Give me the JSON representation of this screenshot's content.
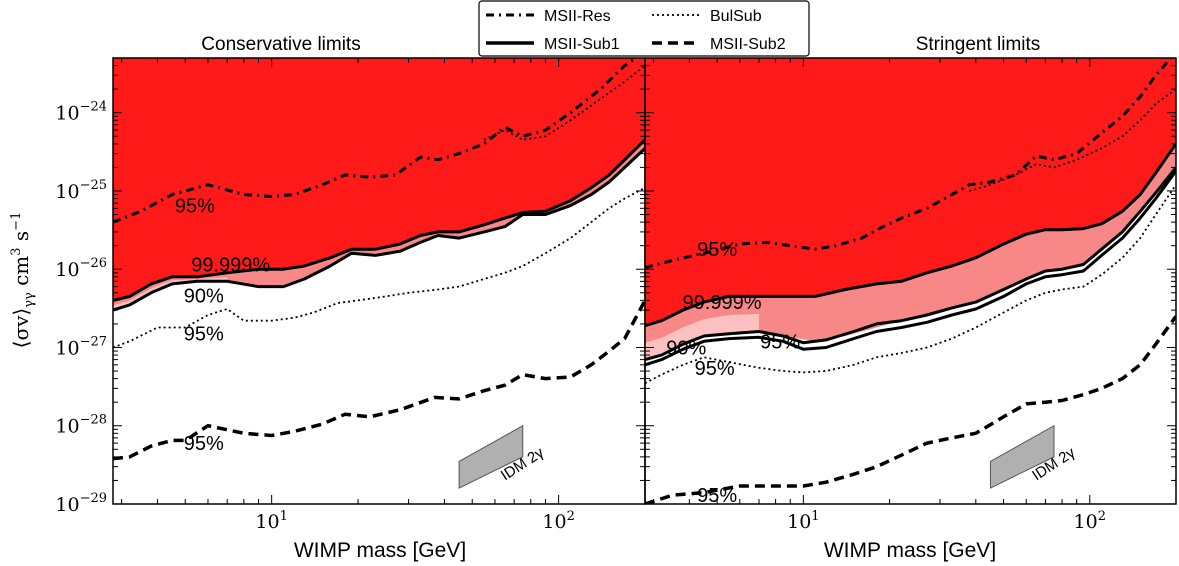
{
  "figure": {
    "ylabel_main": "⟨σv⟩γγ cm³ s⁻¹",
    "xlabel": "WIMP mass [GeV]"
  },
  "legend": {
    "placement": "top-center",
    "entries": [
      {
        "name": "MSII-Res",
        "style": "dash-dot"
      },
      {
        "name": "BulSub",
        "style": "dotted"
      },
      {
        "name": "MSII-Sub1",
        "style": "solid"
      },
      {
        "name": "MSII-Sub2",
        "style": "dashed"
      }
    ]
  },
  "colors": {
    "excluded_95": "#ff1a1a",
    "band_outer": "#f88888",
    "band_inner": "#fbcaca",
    "idm": "#b0b0b0"
  },
  "chart_data": [
    {
      "type": "line",
      "title": "Conservative limits",
      "xlabel": "WIMP mass [GeV]",
      "ylabel": "⟨σv⟩γγ cm³ s⁻¹",
      "xscale": "log",
      "yscale": "log",
      "xlim": [
        2.8,
        200
      ],
      "ylim": [
        1e-29,
        5e-24
      ],
      "x_ticks": [
        {
          "value": 10,
          "label": "10^1"
        },
        {
          "value": 100,
          "label": "10^2"
        }
      ],
      "y_ticks": [
        {
          "value": 1e-29,
          "label": "10^-29"
        },
        {
          "value": 1e-28,
          "label": "10^-28"
        },
        {
          "value": 1e-27,
          "label": "10^-27"
        },
        {
          "value": 1e-26,
          "label": "10^-26"
        },
        {
          "value": 1e-25,
          "label": "10^-25"
        },
        {
          "value": 1e-24,
          "label": "10^-24"
        }
      ],
      "series": [
        {
          "name": "MSII-Res",
          "style": "dash-dot",
          "x": [
            2.8,
            3.5,
            4.5,
            6,
            8,
            10,
            12,
            15,
            18,
            22,
            27,
            33,
            38,
            45,
            55,
            65,
            75,
            90,
            110,
            140,
            170,
            200
          ],
          "y": [
            4e-26,
            5.5e-26,
            9e-26,
            1.2e-25,
            9e-26,
            8.5e-26,
            9e-26,
            1.2e-25,
            1.6e-25,
            1.5e-25,
            1.6e-25,
            2.7e-25,
            2.5e-25,
            3e-25,
            4e-25,
            6.5e-25,
            5e-25,
            6e-25,
            1e-24,
            2e-24,
            4e-24,
            6e-24
          ]
        },
        {
          "name": "MSII-Res",
          "style": "dotted",
          "x": [
            55,
            65,
            75,
            90,
            110,
            140,
            170,
            200
          ],
          "y": [
            4.5e-25,
            6e-25,
            4.5e-25,
            5e-25,
            8e-25,
            1.5e-24,
            2.5e-24,
            4e-24
          ]
        },
        {
          "name": "MSII-Sub1",
          "style": "solid",
          "x": [
            2.8,
            3.2,
            3.8,
            4.5,
            5.5,
            7,
            9,
            11,
            13,
            16,
            19,
            23,
            28,
            33,
            38,
            45,
            55,
            65,
            75,
            90,
            110,
            130,
            150,
            170,
            200
          ],
          "y": [
            3e-27,
            3.5e-27,
            5e-27,
            6.5e-27,
            7e-27,
            7e-27,
            6e-27,
            6e-27,
            7.5e-27,
            1.1e-26,
            1.6e-26,
            1.5e-26,
            1.7e-26,
            2.2e-26,
            2.7e-26,
            2.5e-26,
            3e-26,
            3.5e-26,
            5e-26,
            5e-26,
            6.5e-26,
            9e-26,
            1.3e-25,
            2e-25,
            3.5e-25
          ]
        },
        {
          "name": "MSII-Sub1",
          "style": "solid",
          "x": [
            2.8,
            3.2,
            3.8,
            4.5,
            5.5,
            7,
            9,
            11,
            13,
            16,
            19,
            23,
            28,
            33,
            38,
            45,
            55,
            65,
            75,
            90,
            110,
            130,
            150,
            170,
            200
          ],
          "y": [
            4e-27,
            4.5e-27,
            6.5e-27,
            8e-27,
            8e-27,
            9e-27,
            1e-26,
            1e-26,
            1.1e-26,
            1.4e-26,
            1.8e-26,
            1.8e-26,
            2.1e-26,
            2.7e-26,
            3e-26,
            3e-26,
            3.7e-26,
            4.5e-26,
            5.3e-26,
            5.5e-26,
            7.5e-26,
            1.1e-25,
            1.6e-25,
            2.5e-25,
            4.5e-25
          ]
        },
        {
          "name": "BulSub",
          "style": "dotted",
          "x": [
            2.8,
            3.2,
            4,
            5,
            6,
            7,
            8,
            10,
            12,
            14,
            17,
            20,
            25,
            30,
            38,
            45,
            55,
            65,
            75,
            90,
            110,
            130,
            150,
            170,
            200
          ],
          "y": [
            1e-27,
            1.2e-27,
            1.8e-27,
            1.8e-27,
            2.6e-27,
            3.1e-27,
            2.2e-27,
            2.2e-27,
            2.4e-27,
            2.8e-27,
            3.7e-27,
            4e-27,
            4.5e-27,
            5e-27,
            5.5e-27,
            6e-27,
            7.5e-27,
            9e-27,
            1.1e-26,
            1.6e-26,
            2.5e-26,
            4e-26,
            6e-26,
            8e-26,
            1.1e-25
          ]
        },
        {
          "name": "MSII-Sub2",
          "style": "dashed",
          "x": [
            2.8,
            3.2,
            3.8,
            4.5,
            5,
            6,
            8,
            10,
            12,
            15,
            18,
            22,
            28,
            32,
            37,
            45,
            55,
            65,
            75,
            90,
            110,
            130,
            150,
            170,
            200
          ],
          "y": [
            3.8e-29,
            4e-29,
            5.5e-29,
            6.5e-29,
            6.5e-29,
            1e-28,
            8e-29,
            7.5e-29,
            8.5e-29,
            1.05e-28,
            1.4e-28,
            1.3e-28,
            1.6e-28,
            1.9e-28,
            2.3e-28,
            2.2e-28,
            2.8e-28,
            3.3e-28,
            4.5e-28,
            4e-28,
            4.2e-28,
            6e-28,
            9e-28,
            1.3e-27,
            4e-27
          ]
        }
      ],
      "bands": [
        {
          "name": "99.999%",
          "x": [
            2.8,
            3.2,
            3.8,
            4.5,
            5.5,
            7,
            9,
            11,
            13,
            16,
            19,
            23,
            28,
            33,
            38,
            45,
            55,
            65,
            75,
            90,
            110,
            130,
            150,
            170,
            200
          ],
          "upper": [
            4e-27,
            4.5e-27,
            6.5e-27,
            8e-27,
            8e-27,
            9e-27,
            1e-26,
            1e-26,
            1.1e-26,
            1.4e-26,
            1.8e-26,
            1.8e-26,
            2.1e-26,
            2.7e-26,
            3e-26,
            3e-26,
            3.7e-26,
            4.5e-26,
            5.3e-26,
            5.5e-26,
            7.5e-26,
            1.1e-25,
            1.6e-25,
            2.5e-25,
            4.5e-25
          ],
          "lower": [
            3e-27,
            3.5e-27,
            5e-27,
            6.5e-27,
            7e-27,
            7e-27,
            6e-27,
            6e-27,
            7.5e-27,
            1.1e-26,
            1.6e-26,
            1.5e-26,
            1.7e-26,
            2.2e-26,
            2.7e-26,
            2.5e-26,
            3e-26,
            3.5e-26,
            5e-26,
            5e-26,
            6.5e-26,
            9e-26,
            1.3e-25,
            2e-25,
            3.5e-25
          ]
        }
      ],
      "idm_band": {
        "label": "IDM 2γ",
        "x": [
          45,
          75
        ],
        "lower": [
          1.6e-29,
          4e-29
        ],
        "upper": [
          3.5e-29,
          1e-28
        ]
      },
      "annotations": [
        {
          "text": "95%",
          "x": 5.4,
          "y": 6.5e-26
        },
        {
          "text": "99.999%",
          "x": 7.2,
          "y": 1.15e-26
        },
        {
          "text": "90%",
          "x": 5.8,
          "y": 4.6e-27
        },
        {
          "text": "95%",
          "x": 5.8,
          "y": 1.5e-27
        },
        {
          "text": "95%",
          "x": 5.8,
          "y": 6e-29
        }
      ]
    },
    {
      "type": "line",
      "title": "Stringent limits",
      "xlabel": "WIMP mass [GeV]",
      "xscale": "log",
      "yscale": "log",
      "xlim": [
        2.8,
        200
      ],
      "ylim": [
        1e-29,
        5e-24
      ],
      "x_ticks": [
        {
          "value": 10,
          "label": "10^1"
        },
        {
          "value": 100,
          "label": "10^2"
        }
      ],
      "series": [
        {
          "name": "MSII-Res",
          "style": "dash-dot",
          "x": [
            2.8,
            3.5,
            4.5,
            6,
            7.5,
            9,
            11,
            13,
            16,
            19,
            22,
            27,
            33,
            38,
            45,
            55,
            65,
            75,
            90,
            110,
            130,
            150,
            170,
            200
          ],
          "y": [
            1.05e-26,
            1.3e-26,
            1.6e-26,
            2.1e-26,
            2.2e-26,
            2e-26,
            1.8e-26,
            2e-26,
            2.5e-26,
            3.5e-26,
            4.5e-26,
            6e-26,
            9e-26,
            1.2e-25,
            1.3e-25,
            1.6e-25,
            2.8e-25,
            2.5e-25,
            3e-25,
            5.5e-25,
            9e-25,
            1.6e-24,
            3e-24,
            6e-24
          ]
        },
        {
          "name": "MSII-Res",
          "style": "dotted",
          "x": [
            38,
            45,
            55,
            65,
            75,
            90,
            110,
            130,
            150,
            170,
            200
          ],
          "y": [
            1e-25,
            1.2e-25,
            1.6e-25,
            2.2e-25,
            2e-25,
            2.5e-25,
            3.5e-25,
            5e-25,
            8e-25,
            1.3e-24,
            2e-24
          ]
        },
        {
          "name": "MSII-Sub1",
          "style": "solid",
          "x": [
            2.8,
            3.2,
            3.8,
            4.5,
            5.5,
            7,
            9,
            11,
            14,
            18,
            22,
            27,
            33,
            40,
            50,
            60,
            70,
            80,
            95,
            110,
            130,
            150,
            170,
            200
          ],
          "y": [
            1.9e-27,
            2.2e-27,
            3e-27,
            3.8e-27,
            4.5e-27,
            4.5e-27,
            4.5e-27,
            4.5e-27,
            5.5e-27,
            6.5e-27,
            7e-27,
            9e-27,
            1.1e-26,
            1.4e-26,
            2.1e-26,
            2.8e-26,
            3.2e-26,
            3.2e-26,
            3.3e-26,
            3.8e-26,
            5.5e-26,
            9e-26,
            1.7e-25,
            4e-25
          ]
        },
        {
          "name": "MSII-Sub1",
          "style": "solid",
          "x": [
            2.8,
            3.2,
            3.8,
            4.5,
            5.5,
            7,
            8.5,
            10,
            12,
            15,
            18,
            22,
            27,
            33,
            40,
            50,
            60,
            70,
            80,
            95,
            110,
            130,
            150,
            170,
            200
          ],
          "y": [
            6e-28,
            7e-28,
            9.5e-28,
            1.2e-27,
            1.3e-27,
            1.35e-27,
            1.2e-27,
            9.5e-28,
            1e-27,
            1.3e-27,
            1.6e-27,
            1.8e-27,
            2.1e-27,
            2.6e-27,
            3.1e-27,
            4.5e-27,
            6.5e-27,
            8e-27,
            8.5e-27,
            9.5e-27,
            1.5e-26,
            2.5e-26,
            4.5e-26,
            8e-26,
            1.8e-25
          ]
        },
        {
          "name": "MSII-Sub1",
          "style": "solid",
          "x": [
            2.8,
            3.2,
            3.8,
            4.5,
            5.5,
            7,
            8.5,
            10,
            12,
            15,
            18,
            22,
            27,
            33,
            40,
            50,
            60,
            70,
            80,
            95,
            110,
            130,
            150,
            170,
            200
          ],
          "y": [
            7e-28,
            8e-28,
            1.1e-27,
            1.4e-27,
            1.5e-27,
            1.6e-27,
            1.4e-27,
            1.15e-27,
            1.25e-27,
            1.6e-27,
            2e-27,
            2.2e-27,
            2.6e-27,
            3.2e-27,
            3.8e-27,
            5.5e-27,
            7.5e-27,
            9.5e-27,
            1e-26,
            1.15e-26,
            1.8e-26,
            3e-26,
            5.5e-26,
            9.5e-26,
            2e-25
          ]
        },
        {
          "name": "BulSub",
          "style": "dotted",
          "x": [
            2.8,
            3.2,
            3.8,
            4.5,
            5.5,
            7,
            8.5,
            10,
            12,
            15,
            18,
            22,
            27,
            33,
            40,
            50,
            60,
            70,
            80,
            95,
            110,
            130,
            150,
            170,
            200
          ],
          "y": [
            3.5e-28,
            4.5e-28,
            6e-28,
            7.5e-28,
            6.5e-28,
            5.5e-28,
            5e-28,
            4.8e-28,
            5e-28,
            6e-28,
            7.5e-28,
            8.5e-28,
            1e-27,
            1.3e-27,
            1.8e-27,
            2.8e-27,
            4e-27,
            5e-27,
            5.5e-27,
            6e-27,
            8.5e-27,
            1.4e-26,
            2.5e-26,
            5e-26,
            1.2e-25
          ]
        },
        {
          "name": "MSII-Sub2",
          "style": "dashed",
          "x": [
            2.8,
            3.5,
            4.5,
            6,
            8,
            10,
            12,
            15,
            18,
            22,
            27,
            33,
            40,
            50,
            60,
            70,
            80,
            95,
            110,
            130,
            150,
            170,
            200
          ],
          "y": [
            1e-29,
            1.3e-29,
            1.4e-29,
            1.7e-29,
            1.7e-29,
            1.7e-29,
            1.9e-29,
            2.4e-29,
            3e-29,
            4.2e-29,
            6e-29,
            7e-29,
            8e-29,
            1.3e-28,
            1.9e-28,
            2e-28,
            2.1e-28,
            2.5e-28,
            3e-28,
            4e-28,
            6e-28,
            1.1e-27,
            2.5e-27
          ]
        }
      ],
      "bands": [
        {
          "name": "99.999%",
          "x": [
            2.8,
            3.2,
            3.8,
            4.5,
            5.5,
            7,
            9,
            11,
            14,
            18,
            22,
            27,
            33,
            40,
            50,
            60,
            70,
            80,
            95,
            110,
            130,
            150,
            170,
            200
          ],
          "upper": [
            1.9e-27,
            2.2e-27,
            3e-27,
            3.8e-27,
            4.5e-27,
            4.5e-27,
            4.5e-27,
            4.5e-27,
            5.5e-27,
            6.5e-27,
            7e-27,
            9e-27,
            1.1e-26,
            1.4e-26,
            2.1e-26,
            2.8e-26,
            3.2e-26,
            3.2e-26,
            3.3e-26,
            3.8e-26,
            5.5e-26,
            9e-26,
            1.7e-25,
            4e-25
          ],
          "lower": [
            7e-28,
            8e-28,
            1.1e-27,
            1.4e-27,
            1.5e-27,
            1.6e-27,
            1.35e-27,
            1.2e-27,
            1.4e-27,
            1.8e-27,
            2.2e-27,
            2.6e-27,
            3.2e-27,
            3.8e-27,
            5.5e-27,
            7.5e-27,
            9.5e-27,
            1e-26,
            1.15e-26,
            1.8e-26,
            3e-26,
            5.5e-26,
            9.5e-26,
            2e-25
          ]
        }
      ],
      "idm_band": {
        "label": "IDM 2γ",
        "x": [
          45,
          75
        ],
        "lower": [
          1.6e-29,
          4e-29
        ],
        "upper": [
          3.5e-29,
          1e-28
        ]
      },
      "annotations": [
        {
          "text": "95%",
          "x": 5,
          "y": 1.8e-26
        },
        {
          "text": "99.999%",
          "x": 5.2,
          "y": 3.8e-27
        },
        {
          "text": "90%",
          "x": 3.9,
          "y": 1e-27
        },
        {
          "text": "95%",
          "x": 8.3,
          "y": 1.2e-27
        },
        {
          "text": "95%",
          "x": 4.9,
          "y": 5.5e-28
        },
        {
          "text": "95%",
          "x": 5,
          "y": 1.3e-29
        }
      ]
    }
  ]
}
